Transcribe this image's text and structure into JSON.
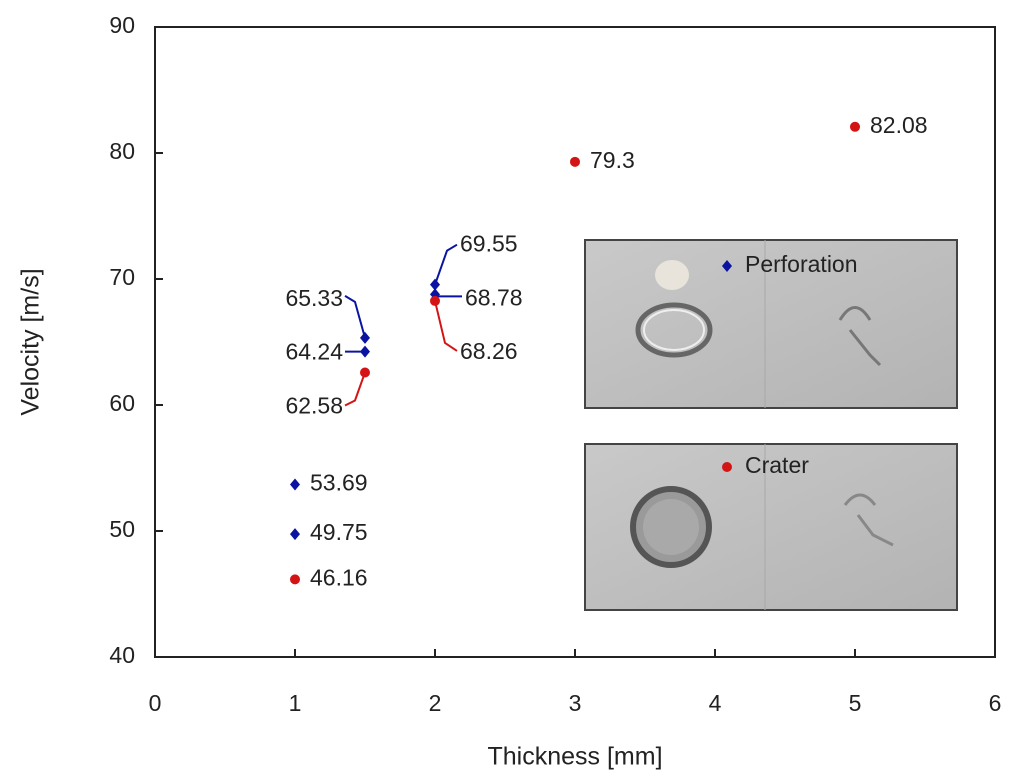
{
  "chart_data": {
    "type": "scatter",
    "xlabel": "Thickness [mm]",
    "ylabel": "Velocity [m/s]",
    "xlim": [
      0,
      6
    ],
    "xticks": [
      0,
      1,
      2,
      3,
      4,
      5,
      6
    ],
    "ylim": [
      40,
      90
    ],
    "yticks": [
      40,
      50,
      60,
      70,
      80,
      90
    ],
    "series": [
      {
        "name": "Perforation",
        "color": "#0a14a0",
        "marker": "diamond",
        "x": [
          1,
          1,
          1.5,
          1.5,
          2,
          2
        ],
        "values": [
          53.69,
          49.75,
          65.33,
          64.24,
          69.55,
          68.78
        ]
      },
      {
        "name": "Crater",
        "color": "#d41414",
        "marker": "circle",
        "x": [
          1,
          1.5,
          2,
          3,
          5
        ],
        "values": [
          46.16,
          62.58,
          68.26,
          79.3,
          82.08
        ]
      }
    ]
  }
}
